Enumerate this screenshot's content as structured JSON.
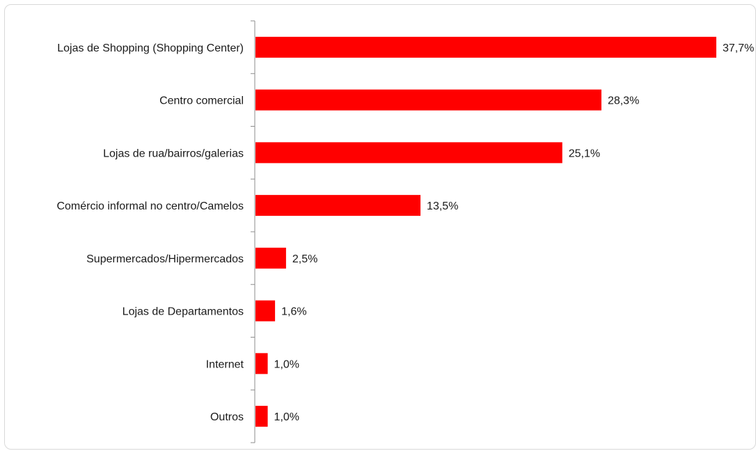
{
  "chart_data": {
    "type": "bar",
    "orientation": "horizontal",
    "categories": [
      "Lojas de Shopping (Shopping Center)",
      "Centro comercial",
      "Lojas de rua/bairros/galerias",
      "Comércio informal no centro/Camelos",
      "Supermercados/Hipermercados",
      "Lojas de Departamentos",
      "Internet",
      "Outros"
    ],
    "values": [
      37.7,
      28.3,
      25.1,
      13.5,
      2.5,
      1.6,
      1.0,
      1.0
    ],
    "value_labels": [
      "37,7%",
      "28,3%",
      "25,1%",
      "13,5%",
      "2,5%",
      "1,6%",
      "1,0%",
      "1,0%"
    ],
    "xlim": [
      0,
      37.7
    ],
    "bar_color": "#ff0000",
    "grid": false,
    "legend": "none"
  }
}
